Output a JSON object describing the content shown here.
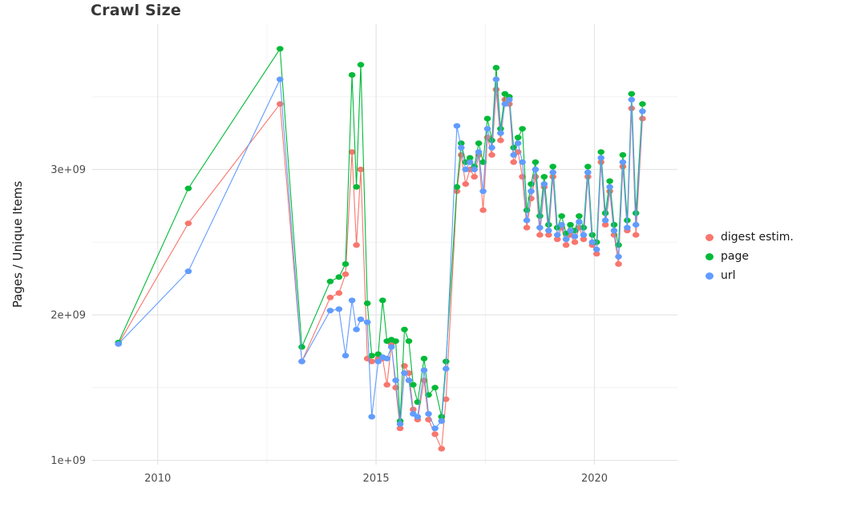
{
  "title": "Crawl Size",
  "chart_data": {
    "type": "line",
    "title": "Crawl Size",
    "xlabel": "",
    "ylabel": "Pages / Unique Items",
    "legend_position": "right",
    "grid": true,
    "background": "#ffffff",
    "grid_major_color": "#e5e5e5",
    "grid_minor_color": "#f2f2f2",
    "xlim": [
      2008.5,
      2021.9
    ],
    "ylim": [
      970000000,
      4000000000
    ],
    "x_ticks": [
      2010,
      2015,
      2020
    ],
    "x_tick_labels": [
      "2010",
      "2015",
      "2020"
    ],
    "x_minor_ticks": [
      2012.5,
      2017.5
    ],
    "y_ticks": [
      1000000000.0,
      2000000000.0,
      3000000000.0
    ],
    "y_tick_labels": [
      "1e+09",
      "2e+09",
      "3e+09"
    ],
    "y_minor_ticks": [
      1500000000.0,
      2500000000.0,
      3500000000.0
    ],
    "x": [
      2009.1,
      2010.7,
      2012.8,
      2013.3,
      2013.95,
      2014.15,
      2014.3,
      2014.45,
      2014.55,
      2014.65,
      2014.8,
      2014.9,
      2015.05,
      2015.15,
      2015.25,
      2015.35,
      2015.45,
      2015.55,
      2015.65,
      2015.75,
      2015.85,
      2015.95,
      2016.1,
      2016.2,
      2016.35,
      2016.5,
      2016.6,
      2016.85,
      2016.95,
      2017.05,
      2017.15,
      2017.25,
      2017.35,
      2017.45,
      2017.55,
      2017.65,
      2017.75,
      2017.85,
      2017.95,
      2018.05,
      2018.15,
      2018.25,
      2018.35,
      2018.45,
      2018.55,
      2018.65,
      2018.75,
      2018.85,
      2018.95,
      2019.05,
      2019.15,
      2019.25,
      2019.35,
      2019.45,
      2019.55,
      2019.65,
      2019.75,
      2019.85,
      2019.95,
      2020.05,
      2020.15,
      2020.25,
      2020.35,
      2020.45,
      2020.55,
      2020.65,
      2020.75,
      2020.85,
      2020.95,
      2021.1
    ],
    "series": [
      {
        "name": "digest estim.",
        "color": "#F8766D",
        "values": [
          1800000000.0,
          2630000000.0,
          3450000000.0,
          1680000000.0,
          2120000000.0,
          2150000000.0,
          2280000000.0,
          3120000000.0,
          2480000000.0,
          3000000000.0,
          1700000000.0,
          1680000000.0,
          1700000000.0,
          1700000000.0,
          1520000000.0,
          1800000000.0,
          1500000000.0,
          1220000000.0,
          1650000000.0,
          1600000000.0,
          1350000000.0,
          1280000000.0,
          1550000000.0,
          1280000000.0,
          1180000000.0,
          1080000000.0,
          1420000000.0,
          2850000000.0,
          3100000000.0,
          2900000000.0,
          3000000000.0,
          2950000000.0,
          3100000000.0,
          2720000000.0,
          3220000000.0,
          3100000000.0,
          3550000000.0,
          3200000000.0,
          3480000000.0,
          3450000000.0,
          3050000000.0,
          3120000000.0,
          2950000000.0,
          2600000000.0,
          2800000000.0,
          2950000000.0,
          2550000000.0,
          2880000000.0,
          2550000000.0,
          2950000000.0,
          2520000000.0,
          2600000000.0,
          2480000000.0,
          2550000000.0,
          2500000000.0,
          2600000000.0,
          2520000000.0,
          2950000000.0,
          2480000000.0,
          2420000000.0,
          3050000000.0,
          2620000000.0,
          2850000000.0,
          2550000000.0,
          2350000000.0,
          3020000000.0,
          2580000000.0,
          3420000000.0,
          2550000000.0,
          3350000000.0
        ]
      },
      {
        "name": "page",
        "color": "#00BA38",
        "values": [
          1810000000.0,
          2870000000.0,
          3830000000.0,
          1780000000.0,
          2230000000.0,
          2260000000.0,
          2350000000.0,
          3650000000.0,
          2880000000.0,
          3720000000.0,
          2080000000.0,
          1720000000.0,
          1730000000.0,
          2100000000.0,
          1820000000.0,
          1830000000.0,
          1820000000.0,
          1270000000.0,
          1900000000.0,
          1820000000.0,
          1520000000.0,
          1400000000.0,
          1700000000.0,
          1450000000.0,
          1500000000.0,
          1300000000.0,
          1680000000.0,
          2880000000.0,
          3180000000.0,
          3050000000.0,
          3080000000.0,
          3020000000.0,
          3180000000.0,
          3050000000.0,
          3350000000.0,
          3200000000.0,
          3700000000.0,
          3280000000.0,
          3520000000.0,
          3500000000.0,
          3150000000.0,
          3220000000.0,
          3280000000.0,
          2720000000.0,
          2900000000.0,
          3050000000.0,
          2680000000.0,
          2950000000.0,
          2620000000.0,
          3020000000.0,
          2600000000.0,
          2680000000.0,
          2560000000.0,
          2620000000.0,
          2580000000.0,
          2680000000.0,
          2600000000.0,
          3020000000.0,
          2550000000.0,
          2500000000.0,
          3120000000.0,
          2700000000.0,
          2920000000.0,
          2620000000.0,
          2480000000.0,
          3100000000.0,
          2650000000.0,
          3520000000.0,
          2700000000.0,
          3450000000.0
        ]
      },
      {
        "name": "url",
        "color": "#619CFF",
        "values": [
          1800000000.0,
          2300000000.0,
          3620000000.0,
          1680000000.0,
          2030000000.0,
          2040000000.0,
          1720000000.0,
          2100000000.0,
          1900000000.0,
          1970000000.0,
          1950000000.0,
          1300000000.0,
          1680000000.0,
          1710000000.0,
          1700000000.0,
          1780000000.0,
          1550000000.0,
          1250000000.0,
          1600000000.0,
          1550000000.0,
          1320000000.0,
          1300000000.0,
          1620000000.0,
          1320000000.0,
          1220000000.0,
          1270000000.0,
          1630000000.0,
          3300000000.0,
          3150000000.0,
          3000000000.0,
          3050000000.0,
          3000000000.0,
          3120000000.0,
          2850000000.0,
          3280000000.0,
          3150000000.0,
          3620000000.0,
          3250000000.0,
          3450000000.0,
          3480000000.0,
          3100000000.0,
          3180000000.0,
          3050000000.0,
          2650000000.0,
          2850000000.0,
          3000000000.0,
          2600000000.0,
          2900000000.0,
          2580000000.0,
          2980000000.0,
          2550000000.0,
          2620000000.0,
          2520000000.0,
          2580000000.0,
          2540000000.0,
          2640000000.0,
          2550000000.0,
          2980000000.0,
          2500000000.0,
          2450000000.0,
          3080000000.0,
          2650000000.0,
          2880000000.0,
          2580000000.0,
          2400000000.0,
          3050000000.0,
          2600000000.0,
          3480000000.0,
          2620000000.0,
          3400000000.0
        ]
      }
    ]
  }
}
